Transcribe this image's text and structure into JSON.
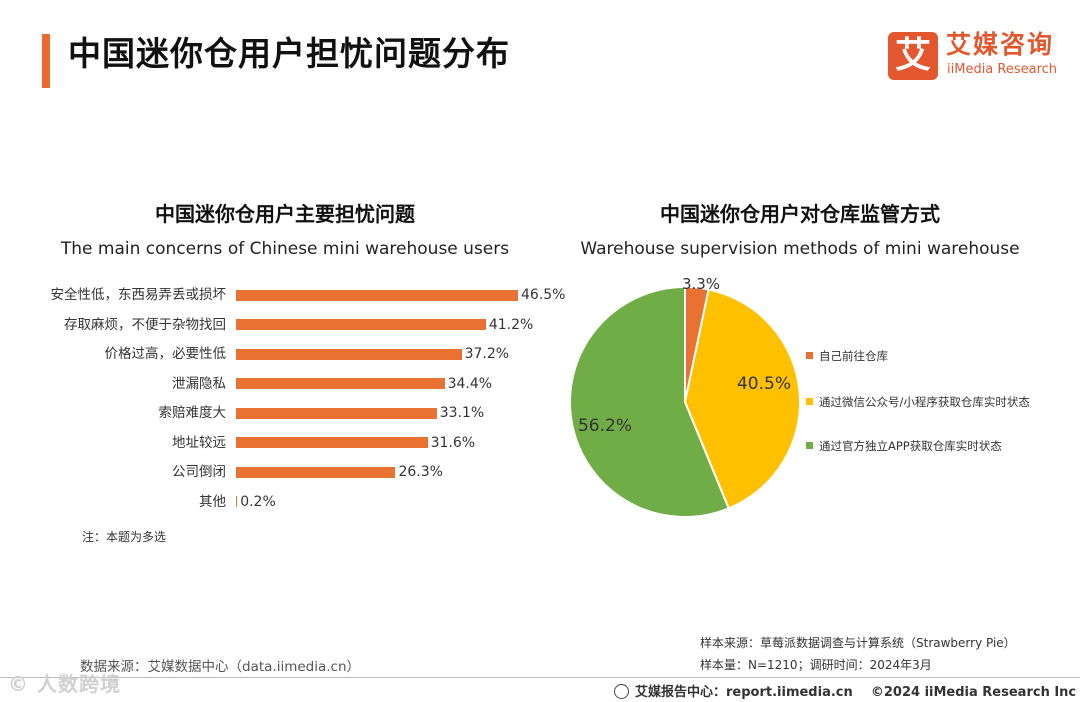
{
  "page": {
    "title": "中国迷你仓用户担忧问题分布"
  },
  "logo": {
    "mark": "艾",
    "name_cn": "艾媒咨询",
    "name_en": "iiMedia Research"
  },
  "colors": {
    "accent": "#ec6a2c",
    "bar": "#e97132",
    "slice_orange": "#e97132",
    "slice_yellow": "#ffc000",
    "slice_green": "#70ad47"
  },
  "chart_data": [
    {
      "type": "bar",
      "orientation": "horizontal",
      "title": "中国迷你仓用户主要担忧问题",
      "subtitle": "The main concerns of Chinese mini warehouse users",
      "categories": [
        "安全性低，东西易弄丢或损坏",
        "存取麻烦，不便于杂物找回",
        "价格过高，必要性低",
        "泄漏隐私",
        "索赔难度大",
        "地址较远",
        "公司倒闭",
        "其他"
      ],
      "values": [
        46.5,
        41.2,
        37.2,
        34.4,
        33.1,
        31.6,
        26.3,
        0.2
      ],
      "labels": [
        "46.5%",
        "41.2%",
        "37.2%",
        "34.4%",
        "33.1%",
        "31.6%",
        "26.3%",
        "0.2%"
      ],
      "unit": "%",
      "xlim": [
        0,
        50
      ],
      "note": "注：本题为多选"
    },
    {
      "type": "pie",
      "title": "中国迷你仓用户对仓库监管方式",
      "subtitle": "Warehouse supervision methods of mini warehouse",
      "slices": [
        {
          "name": "自己前往仓库",
          "value": 3.3,
          "label": "3.3%",
          "color": "#e97132"
        },
        {
          "name": "通过微信公众号/小程序获取仓库实时状态",
          "value": 40.5,
          "label": "40.5%",
          "color": "#ffc000"
        },
        {
          "name": "通过官方独立APP获取仓库实时状态",
          "value": 56.2,
          "label": "56.2%",
          "color": "#70ad47"
        }
      ],
      "legend_position": "right"
    }
  ],
  "source": {
    "data_source": "数据来源：艾媒数据中心（data.iimedia.cn）",
    "sample_source": "样本来源：草莓派数据调查与计算系统（Strawberry Pie）",
    "sample_size": "样本量：N=1210；调研时间：2024年3月"
  },
  "footer": {
    "report_center": "艾媒报告中心：report.iimedia.cn",
    "copyright": "©2024  iiMedia Research  Inc"
  },
  "watermark": "©  人数跨境"
}
